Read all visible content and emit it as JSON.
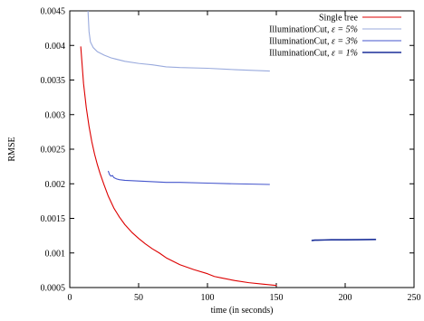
{
  "chart_data": {
    "type": "line",
    "title": "",
    "xlabel": "time (in seconds)",
    "ylabel": "RMSE",
    "xlim": [
      0,
      250
    ],
    "ylim": [
      0.0005,
      0.0045
    ],
    "xticks": [
      0,
      50,
      100,
      150,
      200,
      250
    ],
    "xtick_labels": [
      "0",
      "50",
      "100",
      "150",
      "200",
      "250"
    ],
    "yticks": [
      0.0005,
      0.001,
      0.0015,
      0.002,
      0.0025,
      0.003,
      0.0035,
      0.004,
      0.0045
    ],
    "ytick_labels": [
      "0.0005",
      "0.001",
      "0.0015",
      "0.002",
      "0.0025",
      "0.003",
      "0.0035",
      "0.004",
      "0.0045"
    ],
    "grid": false,
    "legend_position": "top-right",
    "series": [
      {
        "name": "Single tree",
        "color": "#dd0000",
        "x": [
          8,
          10,
          12,
          14,
          16,
          18,
          20,
          22,
          25,
          28,
          32,
          36,
          40,
          45,
          50,
          55,
          60,
          65,
          70,
          80,
          90,
          100,
          105,
          110,
          120,
          130,
          140,
          150
        ],
        "y": [
          0.00398,
          0.00345,
          0.0031,
          0.00283,
          0.00261,
          0.00243,
          0.00228,
          0.00215,
          0.00198,
          0.00182,
          0.00165,
          0.00152,
          0.00141,
          0.0013,
          0.00121,
          0.00113,
          0.00106,
          0.001,
          0.00093,
          0.00083,
          0.00076,
          0.0007,
          0.00066,
          0.00064,
          0.0006,
          0.00057,
          0.00055,
          0.00053
        ]
      },
      {
        "name": "IlluminationCut, ε = 5%",
        "legend_prefix": "IlluminationCut, ",
        "legend_math": "ε = 5%",
        "color": "#99aadd",
        "x": [
          13,
          14,
          15,
          17,
          20,
          25,
          30,
          40,
          50,
          60,
          70,
          80,
          100,
          120,
          145
        ],
        "y": [
          0.0046,
          0.0042,
          0.00405,
          0.00397,
          0.00391,
          0.00386,
          0.00382,
          0.00377,
          0.00374,
          0.00372,
          0.00369,
          0.00368,
          0.00367,
          0.00365,
          0.00363
        ]
      },
      {
        "name": "IlluminationCut, ε = 3%",
        "legend_prefix": "IlluminationCut, ",
        "legend_math": "ε = 3%",
        "color": "#4455cc",
        "x": [
          28,
          29,
          30,
          31,
          32,
          34,
          36,
          40,
          50,
          60,
          70,
          80,
          100,
          120,
          145
        ],
        "y": [
          0.00218,
          0.00213,
          0.00211,
          0.00212,
          0.00209,
          0.00207,
          0.00206,
          0.00205,
          0.00204,
          0.00203,
          0.00202,
          0.00202,
          0.00201,
          0.002,
          0.00199
        ]
      },
      {
        "name": "IlluminationCut, ε = 1%",
        "legend_prefix": "IlluminationCut, ",
        "legend_math": "ε = 1%",
        "color": "#1a2f99",
        "x": [
          176,
          178,
          180,
          185,
          190,
          200,
          210,
          222
        ],
        "y": [
          0.00118,
          0.001185,
          0.001185,
          0.001188,
          0.00119,
          0.00119,
          0.001192,
          0.001195
        ]
      }
    ]
  }
}
